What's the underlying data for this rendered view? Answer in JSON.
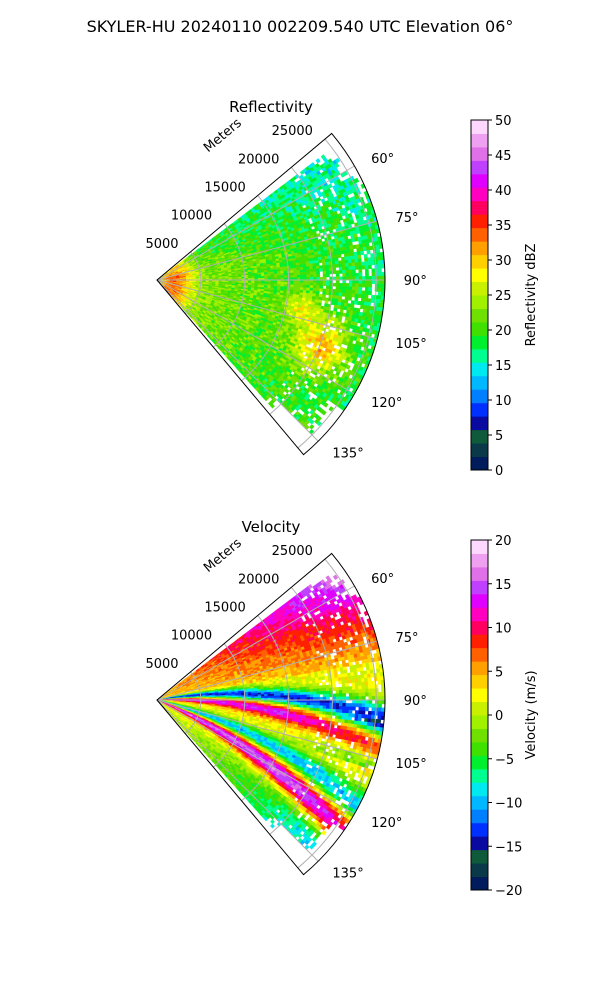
{
  "suptitle": "SKYLER-HU  20240110  002209.540 UTC Elevation 06°",
  "chart_data": [
    {
      "type": "heatmap",
      "subtype": "polar-sector (PPI)",
      "title": "Reflectivity",
      "r_label": "Meters",
      "r_ticks": [
        5000,
        10000,
        15000,
        20000,
        25000
      ],
      "r_max": 26000,
      "theta_ticks": [
        "60°",
        "75°",
        "90°",
        "105°",
        "120°",
        "135°"
      ],
      "theta_tick_values": [
        60,
        75,
        90,
        105,
        120,
        135
      ],
      "theta_range": [
        50,
        140
      ],
      "grid": true,
      "colorbar": {
        "label": "Reflectivity dBZ",
        "min": 0,
        "max": 50,
        "ticks": [
          "0",
          "5",
          "10",
          "15",
          "20",
          "25",
          "30",
          "35",
          "40",
          "45",
          "50"
        ],
        "colors": [
          "#001c5c",
          "#0a3a4a",
          "#0e5a3a",
          "#0a0aa0",
          "#0030ff",
          "#0080ff",
          "#00b8ff",
          "#00e8f0",
          "#00ff90",
          "#00f030",
          "#40e000",
          "#70e000",
          "#a0f000",
          "#c8f000",
          "#ffff00",
          "#ffd000",
          "#ffa000",
          "#ff6000",
          "#ff2000",
          "#ff0060",
          "#ff00c0",
          "#e000ff",
          "#c040ff",
          "#e070e8",
          "#f0a0f0",
          "#ffd8ff"
        ]
      },
      "features": [
        {
          "theta": 95,
          "r": 6000,
          "value": 33
        },
        {
          "theta": 110,
          "r": 22000,
          "value": 36
        },
        {
          "theta": 115,
          "r": 20000,
          "value": 34
        }
      ]
    },
    {
      "type": "heatmap",
      "subtype": "polar-sector (PPI)",
      "title": "Velocity",
      "r_label": "Meters",
      "r_ticks": [
        5000,
        10000,
        15000,
        20000,
        25000
      ],
      "r_max": 26000,
      "theta_ticks": [
        "60°",
        "75°",
        "90°",
        "105°",
        "120°",
        "135°"
      ],
      "theta_tick_values": [
        60,
        75,
        90,
        105,
        120,
        135
      ],
      "theta_range": [
        50,
        140
      ],
      "grid": true,
      "colorbar": {
        "label": "Velocity (m/s)",
        "min": -20,
        "max": 20,
        "ticks": [
          "−20",
          "−15",
          "−10",
          "−5",
          "0",
          "5",
          "10",
          "15",
          "20"
        ],
        "colors": [
          "#001c5c",
          "#0a3a4a",
          "#0e5a3a",
          "#0a0aa0",
          "#0030ff",
          "#0080ff",
          "#00b8ff",
          "#00e8f0",
          "#00ff90",
          "#00f030",
          "#40e000",
          "#70e000",
          "#a0f000",
          "#c8f000",
          "#ffff00",
          "#ffd000",
          "#ffa000",
          "#ff6000",
          "#ff2000",
          "#ff0060",
          "#ff00c0",
          "#e000ff",
          "#c040ff",
          "#e070e8",
          "#f0a0f0",
          "#ffd8ff"
        ]
      },
      "features": [
        {
          "theta": 62,
          "r": 24000,
          "value": 15
        },
        {
          "theta": 85,
          "r": 15000,
          "value": -3
        },
        {
          "theta": 100,
          "r": 12000,
          "value": 12
        },
        {
          "theta": 125,
          "r": 22000,
          "value": -10
        }
      ]
    }
  ]
}
